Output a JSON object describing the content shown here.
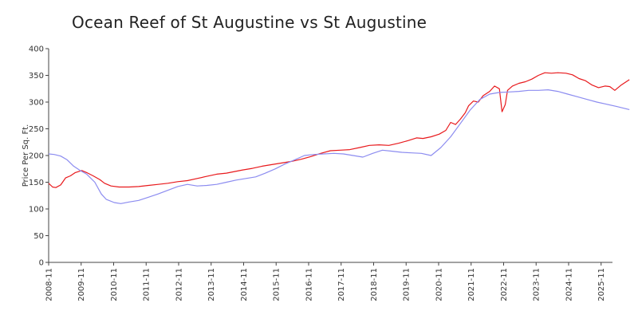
{
  "chart_data": {
    "type": "line",
    "title": "Ocean Reef of St Augustine vs St Augustine",
    "xlabel": "",
    "ylabel": "Price Per Sq. Ft.",
    "ylim": [
      0,
      400
    ],
    "yticks": [
      0,
      50,
      100,
      150,
      200,
      250,
      300,
      350,
      400
    ],
    "xlim": [
      2008.83,
      2026.1
    ],
    "xticks": [
      {
        "value": 2008.83,
        "label": "2008-11"
      },
      {
        "value": 2009.83,
        "label": "2009-11"
      },
      {
        "value": 2010.83,
        "label": "2010-11"
      },
      {
        "value": 2011.83,
        "label": "2011-11"
      },
      {
        "value": 2012.83,
        "label": "2012-11"
      },
      {
        "value": 2013.83,
        "label": "2013-11"
      },
      {
        "value": 2014.83,
        "label": "2014-11"
      },
      {
        "value": 2015.83,
        "label": "2015-11"
      },
      {
        "value": 2016.83,
        "label": "2016-11"
      },
      {
        "value": 2017.83,
        "label": "2017-11"
      },
      {
        "value": 2018.83,
        "label": "2018-11"
      },
      {
        "value": 2019.83,
        "label": "2019-11"
      },
      {
        "value": 2020.83,
        "label": "2020-11"
      },
      {
        "value": 2021.83,
        "label": "2021-11"
      },
      {
        "value": 2022.83,
        "label": "2022-11"
      },
      {
        "value": 2023.83,
        "label": "2023-11"
      },
      {
        "value": 2024.83,
        "label": "2024-11"
      },
      {
        "value": 2025.83,
        "label": "2025-11"
      }
    ],
    "grid": false,
    "legend": "none",
    "series": [
      {
        "color": "#e8191c",
        "points": [
          [
            2008.83,
            148
          ],
          [
            2008.95,
            141
          ],
          [
            2009.05,
            140
          ],
          [
            2009.2,
            145
          ],
          [
            2009.35,
            158
          ],
          [
            2009.5,
            162
          ],
          [
            2009.65,
            168
          ],
          [
            2009.85,
            172
          ],
          [
            2010.0,
            168
          ],
          [
            2010.2,
            162
          ],
          [
            2010.4,
            155
          ],
          [
            2010.55,
            148
          ],
          [
            2010.75,
            143
          ],
          [
            2011.0,
            141
          ],
          [
            2011.3,
            141
          ],
          [
            2011.6,
            142
          ],
          [
            2011.9,
            144
          ],
          [
            2012.2,
            146
          ],
          [
            2012.5,
            148
          ],
          [
            2012.8,
            151
          ],
          [
            2013.1,
            153
          ],
          [
            2013.4,
            157
          ],
          [
            2013.7,
            161
          ],
          [
            2014.0,
            165
          ],
          [
            2014.3,
            167
          ],
          [
            2014.55,
            170
          ],
          [
            2014.8,
            173
          ],
          [
            2015.1,
            176
          ],
          [
            2015.4,
            180
          ],
          [
            2015.7,
            183
          ],
          [
            2016.0,
            186
          ],
          [
            2016.3,
            189
          ],
          [
            2016.6,
            193
          ],
          [
            2016.9,
            198
          ],
          [
            2017.2,
            204
          ],
          [
            2017.5,
            209
          ],
          [
            2017.8,
            210
          ],
          [
            2018.1,
            211
          ],
          [
            2018.4,
            215
          ],
          [
            2018.7,
            219
          ],
          [
            2019.0,
            220
          ],
          [
            2019.3,
            219
          ],
          [
            2019.6,
            223
          ],
          [
            2019.9,
            228
          ],
          [
            2020.15,
            233
          ],
          [
            2020.35,
            232
          ],
          [
            2020.6,
            235
          ],
          [
            2020.85,
            240
          ],
          [
            2021.05,
            247
          ],
          [
            2021.2,
            262
          ],
          [
            2021.35,
            258
          ],
          [
            2021.5,
            268
          ],
          [
            2021.65,
            280
          ],
          [
            2021.75,
            293
          ],
          [
            2021.9,
            302
          ],
          [
            2022.05,
            300
          ],
          [
            2022.2,
            312
          ],
          [
            2022.4,
            320
          ],
          [
            2022.55,
            330
          ],
          [
            2022.7,
            325
          ],
          [
            2022.78,
            282
          ],
          [
            2022.88,
            295
          ],
          [
            2022.95,
            322
          ],
          [
            2023.1,
            330
          ],
          [
            2023.3,
            335
          ],
          [
            2023.5,
            338
          ],
          [
            2023.7,
            343
          ],
          [
            2023.9,
            350
          ],
          [
            2024.1,
            355
          ],
          [
            2024.3,
            354
          ],
          [
            2024.5,
            355
          ],
          [
            2024.75,
            354
          ],
          [
            2024.95,
            351
          ],
          [
            2025.15,
            344
          ],
          [
            2025.35,
            340
          ],
          [
            2025.55,
            332
          ],
          [
            2025.75,
            327
          ],
          [
            2025.95,
            330
          ],
          [
            2026.1,
            329
          ],
          [
            2026.25,
            322
          ],
          [
            2026.45,
            332
          ],
          [
            2026.7,
            342
          ]
        ]
      },
      {
        "color": "#8c8cf0",
        "points": [
          [
            2008.83,
            203
          ],
          [
            2009.0,
            202
          ],
          [
            2009.2,
            199
          ],
          [
            2009.4,
            192
          ],
          [
            2009.6,
            180
          ],
          [
            2009.8,
            172
          ],
          [
            2010.0,
            165
          ],
          [
            2010.25,
            150
          ],
          [
            2010.45,
            128
          ],
          [
            2010.6,
            118
          ],
          [
            2010.85,
            112
          ],
          [
            2011.05,
            110
          ],
          [
            2011.3,
            113
          ],
          [
            2011.6,
            116
          ],
          [
            2011.9,
            122
          ],
          [
            2012.2,
            128
          ],
          [
            2012.5,
            135
          ],
          [
            2012.8,
            142
          ],
          [
            2013.1,
            146
          ],
          [
            2013.4,
            143
          ],
          [
            2013.7,
            144
          ],
          [
            2014.0,
            146
          ],
          [
            2014.3,
            150
          ],
          [
            2014.6,
            154
          ],
          [
            2014.9,
            157
          ],
          [
            2015.2,
            160
          ],
          [
            2015.5,
            167
          ],
          [
            2015.8,
            175
          ],
          [
            2016.1,
            184
          ],
          [
            2016.4,
            192
          ],
          [
            2016.7,
            200
          ],
          [
            2017.0,
            202
          ],
          [
            2017.3,
            203
          ],
          [
            2017.6,
            204
          ],
          [
            2017.9,
            203
          ],
          [
            2018.2,
            200
          ],
          [
            2018.5,
            197
          ],
          [
            2018.8,
            204
          ],
          [
            2019.1,
            210
          ],
          [
            2019.4,
            208
          ],
          [
            2019.7,
            206
          ],
          [
            2020.0,
            205
          ],
          [
            2020.3,
            204
          ],
          [
            2020.6,
            200
          ],
          [
            2020.9,
            215
          ],
          [
            2021.2,
            235
          ],
          [
            2021.5,
            260
          ],
          [
            2021.8,
            285
          ],
          [
            2022.1,
            305
          ],
          [
            2022.4,
            315
          ],
          [
            2022.7,
            318
          ],
          [
            2023.0,
            319
          ],
          [
            2023.3,
            320
          ],
          [
            2023.6,
            322
          ],
          [
            2023.9,
            322
          ],
          [
            2024.2,
            323
          ],
          [
            2024.5,
            320
          ],
          [
            2024.8,
            315
          ],
          [
            2025.1,
            310
          ],
          [
            2025.4,
            305
          ],
          [
            2025.7,
            300
          ],
          [
            2026.0,
            296
          ],
          [
            2026.3,
            292
          ],
          [
            2026.7,
            286
          ]
        ]
      }
    ]
  }
}
